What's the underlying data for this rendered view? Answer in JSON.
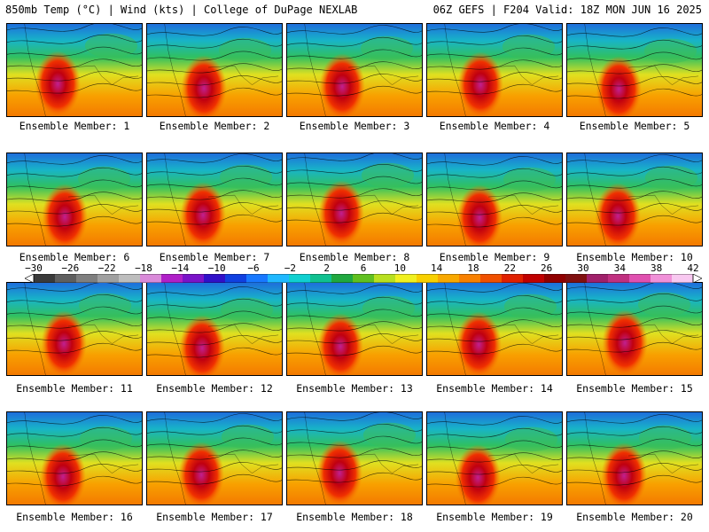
{
  "header": {
    "left_title": "850mb Temp (°C) | Wind (kts) | College of DuPage NEXLAB",
    "right_title": "06Z GEFS | F204 Valid: 18Z MON JUN 16 2025"
  },
  "chart_data": {
    "type": "heatmap",
    "variable": "850mb Temperature (°C) with wind contours",
    "panels": [
      {
        "label": "Ensemble Member: 1"
      },
      {
        "label": "Ensemble Member: 2"
      },
      {
        "label": "Ensemble Member: 3"
      },
      {
        "label": "Ensemble Member: 4"
      },
      {
        "label": "Ensemble Member: 5"
      },
      {
        "label": "Ensemble Member: 6"
      },
      {
        "label": "Ensemble Member: 7"
      },
      {
        "label": "Ensemble Member: 8"
      },
      {
        "label": "Ensemble Member: 9"
      },
      {
        "label": "Ensemble Member: 10"
      },
      {
        "label": "Ensemble Member: 11"
      },
      {
        "label": "Ensemble Member: 12"
      },
      {
        "label": "Ensemble Member: 13"
      },
      {
        "label": "Ensemble Member: 14"
      },
      {
        "label": "Ensemble Member: 15"
      },
      {
        "label": "Ensemble Member: 16"
      },
      {
        "label": "Ensemble Member: 17"
      },
      {
        "label": "Ensemble Member: 18"
      },
      {
        "label": "Ensemble Member: 19"
      },
      {
        "label": "Ensemble Member: 20"
      }
    ],
    "colorbar": {
      "min": -30,
      "max": 42,
      "tick_labels": [
        "−30",
        "−26",
        "−22",
        "−18",
        "−14",
        "−10",
        "−6",
        "−2",
        "2",
        "6",
        "10",
        "14",
        "18",
        "22",
        "26",
        "30",
        "34",
        "38",
        "42"
      ],
      "colors": [
        "#3a3a3a",
        "#5f5f5f",
        "#7f7f7f",
        "#a0a0a0",
        "#bdbdbd",
        "#d98ad9",
        "#b020c8",
        "#7a14c8",
        "#3010c8",
        "#1040e0",
        "#1878ff",
        "#20b8ff",
        "#10d0d0",
        "#10c090",
        "#20a840",
        "#60c020",
        "#b8e020",
        "#f0f020",
        "#f8d000",
        "#f8a800",
        "#f88000",
        "#f05000",
        "#e02000",
        "#c00000",
        "#900000",
        "#801010",
        "#a0206a",
        "#c03080",
        "#e050b0",
        "#f090d8",
        "#f8c8f0"
      ]
    }
  }
}
